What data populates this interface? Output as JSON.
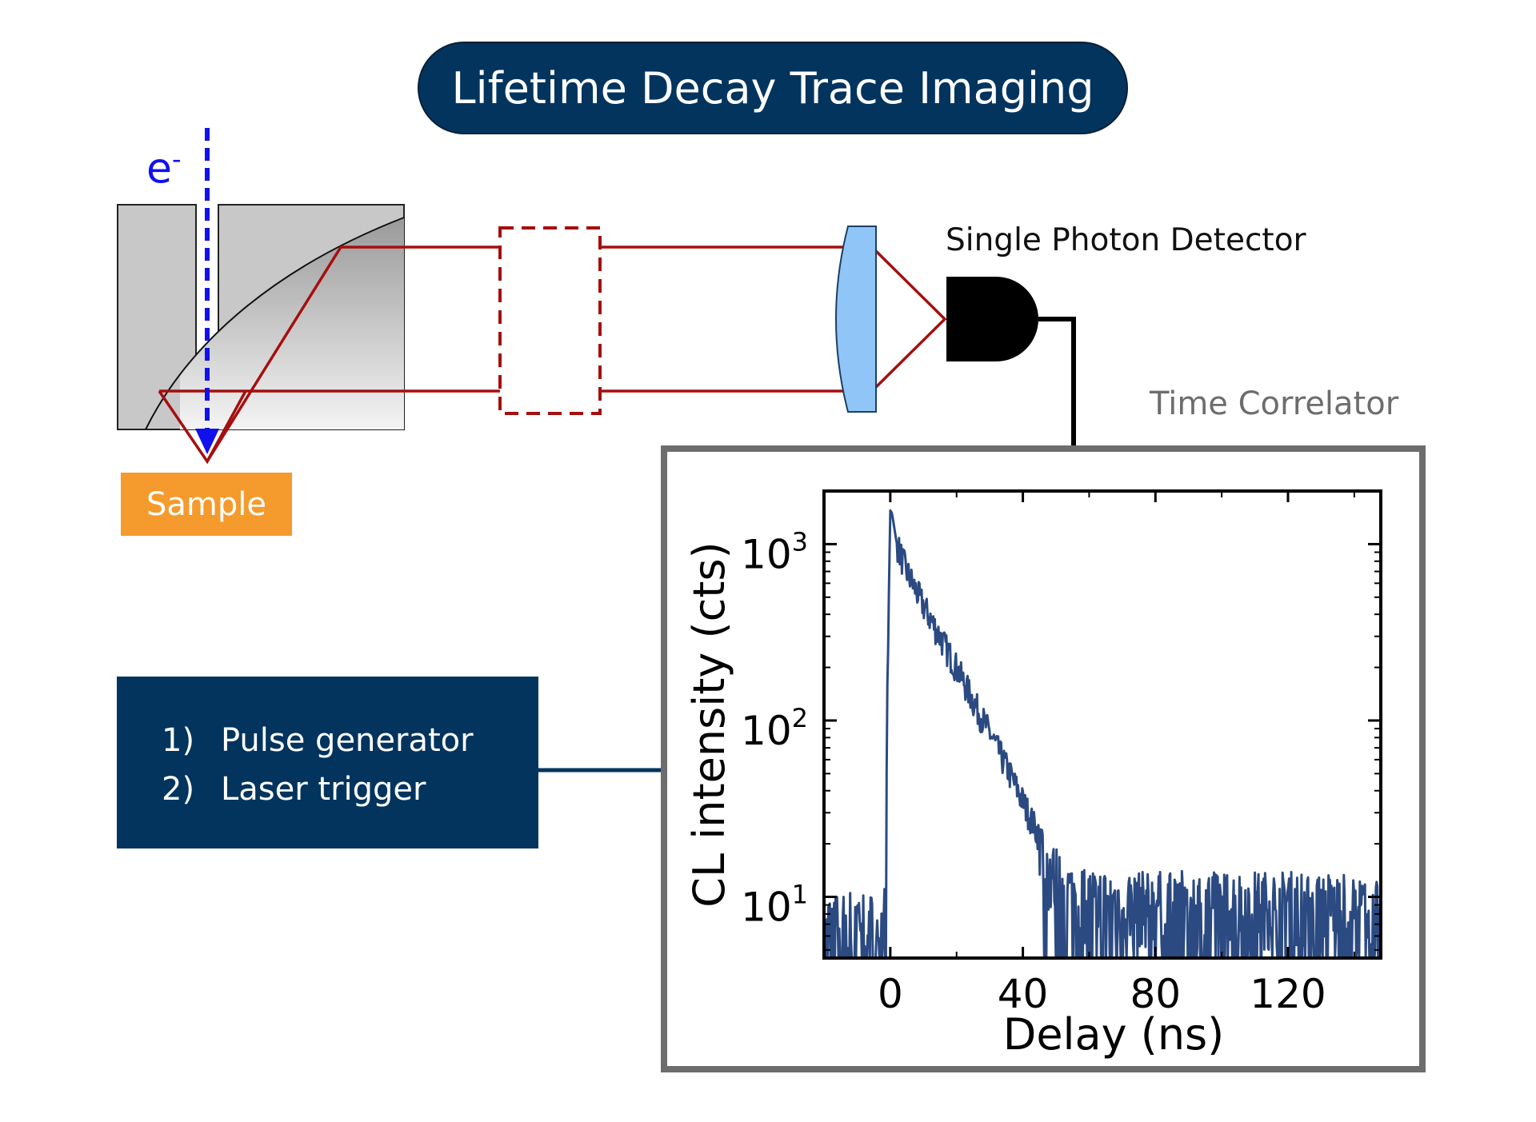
{
  "title": "Lifetime Decay Trace Imaging",
  "electron_label": "e",
  "electron_charge": "-",
  "sample_label": "Sample",
  "detector_label": "Single Photon Detector",
  "correlator_label": "Time Correlator",
  "trigger": {
    "items": [
      {
        "num": "1)",
        "text": "Pulse generator"
      },
      {
        "num": "2)",
        "text": "Laser trigger"
      }
    ]
  },
  "colors": {
    "navy": "#02345e",
    "beam": "#a50f0f",
    "electron": "#1111ee",
    "sample": "#f59a2c",
    "lens": "#8fc6f7",
    "trace": "#2b4a82",
    "frame": "#6d6d6d"
  },
  "chart_data": {
    "type": "line",
    "xlabel": "Delay (ns)",
    "ylabel": "CL intensity (cts)",
    "xlim": [
      -20,
      148
    ],
    "ylim": [
      4.5,
      2000
    ],
    "yscale": "log",
    "xticks": [
      0,
      40,
      80,
      120
    ],
    "yticks": [
      {
        "value": 10,
        "base": "10",
        "exp": "1"
      },
      {
        "value": 100,
        "base": "10",
        "exp": "2"
      },
      {
        "value": 1000,
        "base": "10",
        "exp": "3"
      }
    ],
    "grid": false,
    "series": [
      {
        "x": [
          -20,
          -10,
          -2,
          0,
          0.5,
          2,
          5,
          10,
          15,
          20,
          25,
          30,
          35,
          40,
          45,
          48,
          55,
          70,
          90,
          110,
          130,
          147
        ],
        "y": [
          8,
          9,
          8,
          1550,
          1500,
          1000,
          700,
          450,
          300,
          200,
          130,
          85,
          55,
          35,
          22,
          15,
          11,
          10,
          10,
          10,
          10,
          9
        ]
      }
    ]
  }
}
